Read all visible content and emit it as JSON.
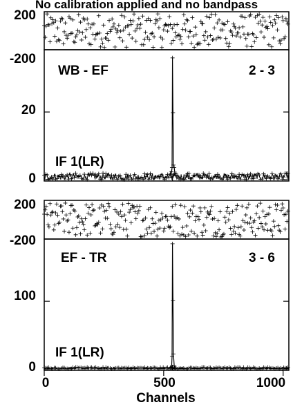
{
  "figure_title": "No calibration applied and no bandpass",
  "chart_data": {
    "type": "line",
    "xlabel": "Channels",
    "x_ticks": [
      "0",
      "500",
      "1000"
    ],
    "xlim": [
      0,
      1024
    ],
    "panels": [
      {
        "baseline": "WB - EF",
        "pair": "2 - 3",
        "if_label": "IF 1(LR)",
        "phase": {
          "ylim": [
            -200,
            200
          ],
          "tick_labels": [
            "200",
            "-200"
          ]
        },
        "amplitude": {
          "ylim": [
            0,
            38
          ],
          "tick_labels": [
            "20",
            "0"
          ],
          "tick_values": [
            20,
            0
          ],
          "noise_level": 1.2,
          "spike_channel": 537,
          "spike_peak": 36
        }
      },
      {
        "baseline": "EF - TR",
        "pair": "3 - 6",
        "if_label": "IF 1(LR)",
        "phase": {
          "ylim": [
            -200,
            200
          ],
          "tick_labels": [
            "200",
            "-200"
          ]
        },
        "amplitude": {
          "ylim": [
            0,
            190
          ],
          "tick_labels": [
            "100",
            "0"
          ],
          "tick_values": [
            100,
            0
          ],
          "noise_level": 1.5,
          "spike_channel": 537,
          "spike_peak": 185
        }
      }
    ]
  }
}
